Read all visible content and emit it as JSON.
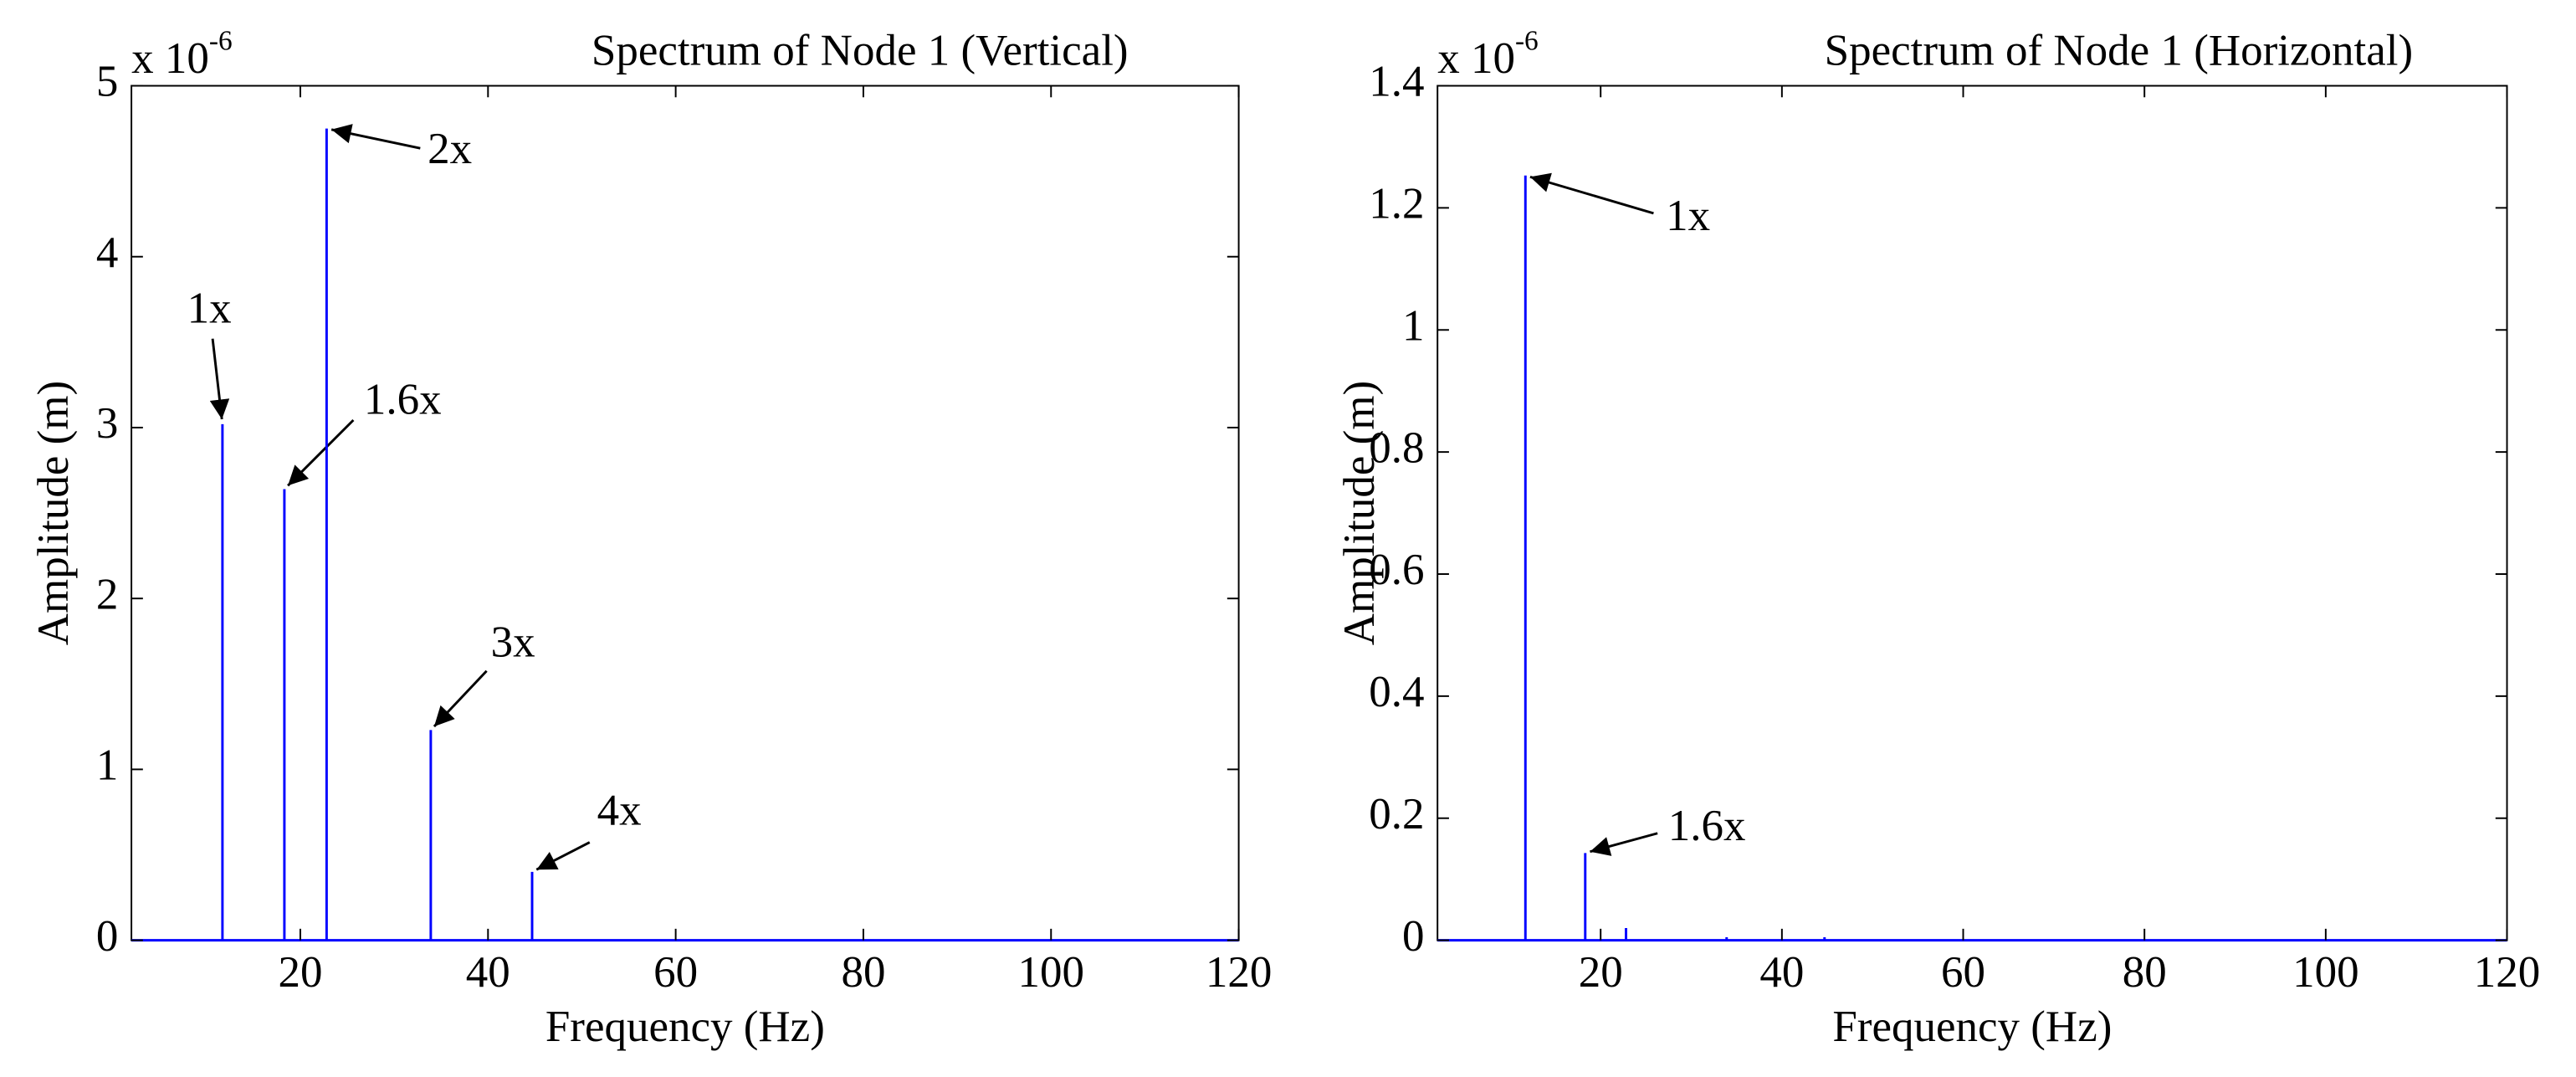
{
  "chart_data": [
    {
      "type": "stem",
      "title": "Spectrum of Node 1 (Vertical)",
      "x_label": "Frequency (Hz)",
      "y_label": "Amplitude (m)",
      "y_scale_label": "x 10",
      "y_scale_exponent": "-6",
      "x": [
        11.7,
        18.3,
        22.8,
        33.9,
        44.7
      ],
      "values": [
        3.02,
        2.64,
        4.75,
        1.23,
        0.4
      ],
      "labels": [
        "1x",
        "1.6x",
        "2x",
        "3x",
        "4x"
      ],
      "color": "#0000ff",
      "xlim": [
        2,
        120
      ],
      "xticks": [
        20,
        40,
        60,
        80,
        100,
        120
      ],
      "ylim": [
        0,
        5
      ],
      "yticks": [
        0,
        1,
        2,
        3,
        4,
        5
      ]
    },
    {
      "type": "stem",
      "title": "Spectrum of Node 1 (Horizontal)",
      "x_label": "Frequency (Hz)",
      "y_label": "Amplitude (m)",
      "y_scale_label": "x 10",
      "y_scale_exponent": "-6",
      "x": [
        11.7,
        18.3,
        22.8,
        33.9,
        44.7
      ],
      "values": [
        1.253,
        0.143,
        0.02,
        0.005,
        0.005
      ],
      "labels": [
        "1x",
        "1.6x",
        null,
        null,
        null
      ],
      "color": "#0000ff",
      "xlim": [
        2,
        120
      ],
      "xticks": [
        20,
        40,
        60,
        80,
        100,
        120
      ],
      "ylim": [
        0,
        1.4
      ],
      "yticks": [
        0,
        0.2,
        0.4,
        0.6,
        0.8,
        1,
        1.2,
        1.4
      ]
    }
  ]
}
